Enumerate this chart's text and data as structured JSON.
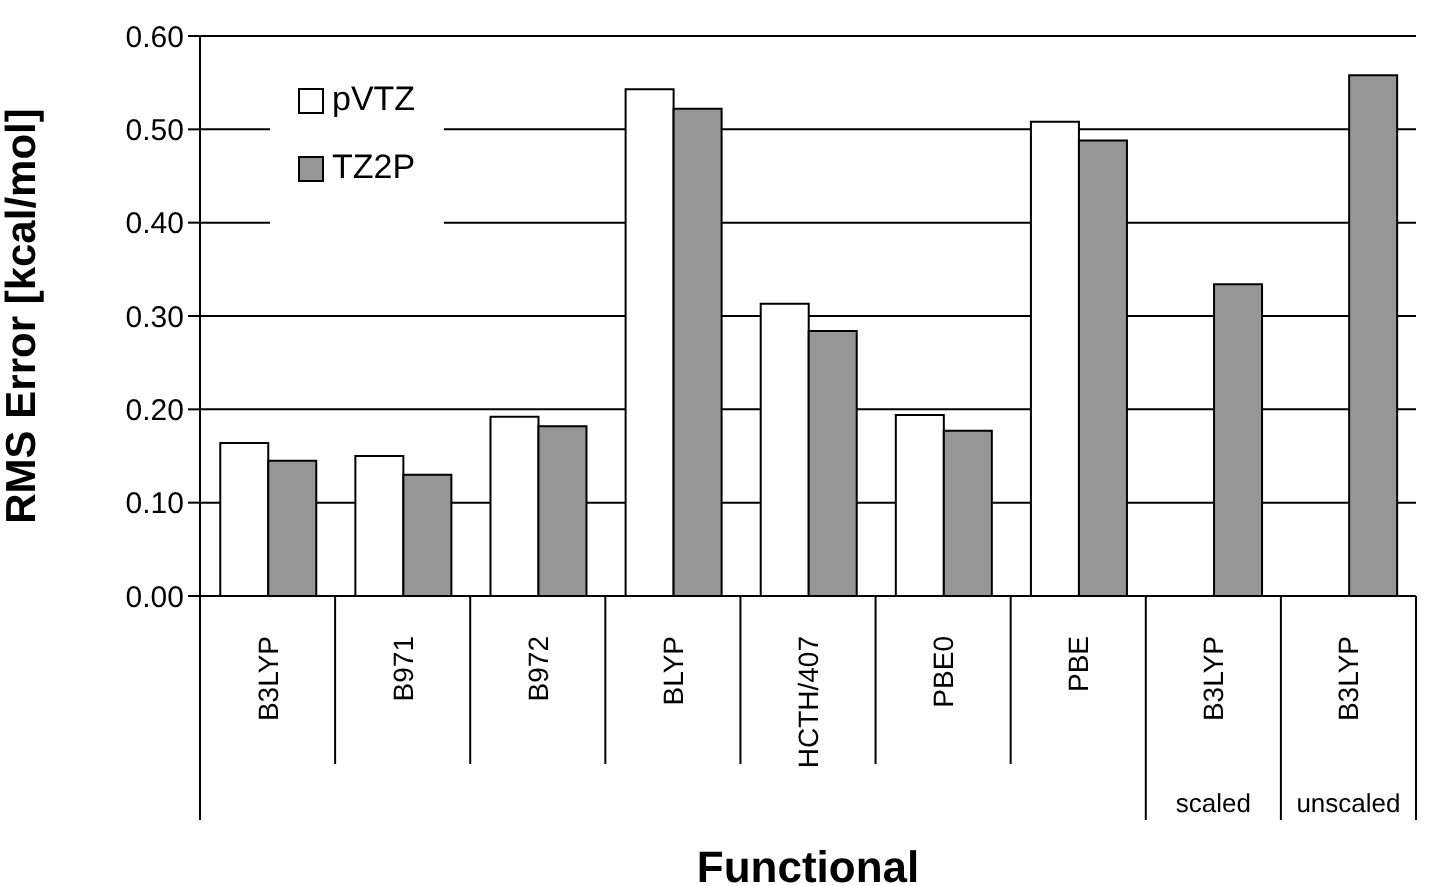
{
  "chart_data": {
    "type": "bar",
    "xlabel": "Functional",
    "ylabel": "RMS Error [kcal/mol]",
    "categories": [
      "B3LYP",
      "B971",
      "B972",
      "BLYP",
      "HCTH/407",
      "PBE0",
      "PBE",
      "B3LYP",
      "B3LYP"
    ],
    "series": [
      {
        "name": "pVTZ",
        "color": "#ffffff",
        "values": [
          0.164,
          0.15,
          0.192,
          0.543,
          0.313,
          0.194,
          0.508,
          null,
          null
        ]
      },
      {
        "name": "TZ2P",
        "color": "#969696",
        "values": [
          0.145,
          0.13,
          0.182,
          0.522,
          0.284,
          0.177,
          0.488,
          0.334,
          0.558
        ]
      }
    ],
    "ylim": [
      0,
      0.6
    ],
    "yticks": [
      {
        "value": 0,
        "label": "0.00"
      },
      {
        "value": 0.1,
        "label": "0.10"
      },
      {
        "value": 0.2,
        "label": "0.20"
      },
      {
        "value": 0.3,
        "label": "0.30"
      },
      {
        "value": 0.4,
        "label": "0.40"
      },
      {
        "value": 0.5,
        "label": "0.50"
      },
      {
        "value": 0.6,
        "label": "0.60"
      }
    ],
    "grid": "y",
    "legend": "top left",
    "annotations": [
      "scaled",
      "unscaled"
    ]
  }
}
